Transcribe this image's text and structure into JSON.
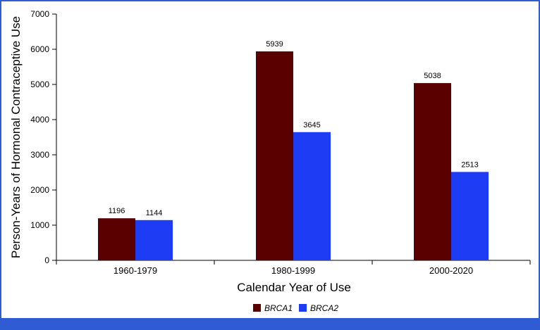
{
  "chart_data": {
    "type": "bar",
    "title": "",
    "xlabel": "Calendar Year of Use",
    "ylabel": "Person-Years of Hormonal Contraceptive Use",
    "categories": [
      "1960-1979",
      "1980-1999",
      "2000-2020"
    ],
    "series": [
      {
        "name": "BRCA1",
        "color": "#5a0000",
        "values": [
          1196,
          5939,
          5038
        ]
      },
      {
        "name": "BRCA2",
        "color": "#1f3cf5",
        "values": [
          1144,
          3645,
          2513
        ]
      }
    ],
    "ylim": [
      0,
      7000
    ],
    "yticks": [
      0,
      1000,
      2000,
      3000,
      4000,
      5000,
      6000,
      7000
    ],
    "grid": false,
    "legend_position": "bottom"
  },
  "colors": {
    "frame": "#2f5bd3"
  }
}
